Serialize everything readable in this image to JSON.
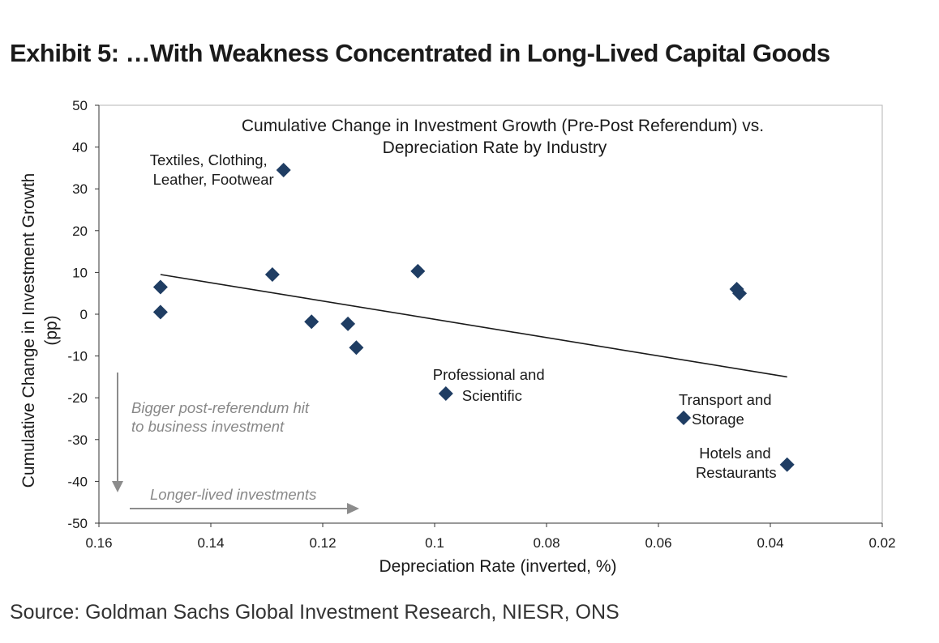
{
  "exhibit_title": "Exhibit 5: …With Weakness Concentrated in Long-Lived Capital Goods",
  "source": "Source: Goldman Sachs Global Investment Research, NIESR, ONS",
  "chart_data": {
    "type": "scatter",
    "title": "Cumulative Change in Investment Growth (Pre-Post Referendum) vs.",
    "subtitle": "Depreciation Rate by Industry",
    "xlabel": "Depreciation Rate (inverted, %)",
    "ylabel_line1": "Cumulative Change in Investment Growth",
    "ylabel_line2": "(pp)",
    "x_reversed": true,
    "xlim": [
      0.02,
      0.16
    ],
    "ylim": [
      -50,
      50
    ],
    "xticks": [
      0.16,
      0.14,
      0.12,
      0.1,
      0.08,
      0.06,
      0.04,
      0.02
    ],
    "xtick_labels": [
      "0.16",
      "0.14",
      "0.12",
      "0.1",
      "0.08",
      "0.06",
      "0.04",
      "0.02"
    ],
    "yticks": [
      50,
      40,
      30,
      20,
      10,
      0,
      -10,
      -20,
      -30,
      -40,
      -50
    ],
    "ytick_labels": [
      "50",
      "40",
      "30",
      "20",
      "10",
      "0",
      "-10",
      "-20",
      "-30",
      "-40",
      "-50"
    ],
    "marker_color": "#1f3d63",
    "points": [
      {
        "x": 0.149,
        "y": 6.5
      },
      {
        "x": 0.149,
        "y": 0.5
      },
      {
        "x": 0.127,
        "y": 34.5,
        "label": [
          "Textiles, Clothing,",
          "Leather, Footwear"
        ]
      },
      {
        "x": 0.129,
        "y": 9.5
      },
      {
        "x": 0.122,
        "y": -1.8
      },
      {
        "x": 0.1155,
        "y": -2.3
      },
      {
        "x": 0.114,
        "y": -8
      },
      {
        "x": 0.103,
        "y": 10.3
      },
      {
        "x": 0.098,
        "y": -19,
        "label": [
          "Professional and",
          "Scientific"
        ]
      },
      {
        "x": 0.0555,
        "y": -24.8,
        "label": [
          "Transport and",
          "Storage"
        ]
      },
      {
        "x": 0.046,
        "y": 6
      },
      {
        "x": 0.0455,
        "y": 5
      },
      {
        "x": 0.037,
        "y": -36,
        "label": [
          "Hotels and",
          "Restaurants"
        ]
      }
    ],
    "trendline": {
      "x": [
        0.149,
        0.037
      ],
      "y": [
        9.5,
        -15
      ]
    },
    "annotations": {
      "down_note": [
        "Bigger post-referendum hit",
        "to business investment"
      ],
      "right_note": "Longer-lived investments"
    }
  }
}
